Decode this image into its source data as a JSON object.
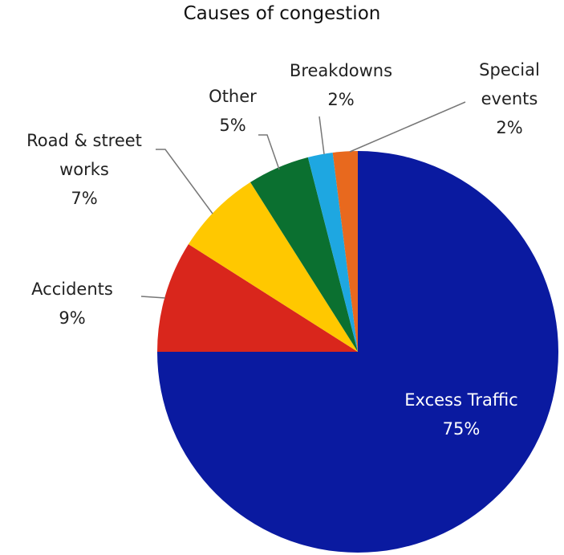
{
  "chart_data": {
    "type": "pie",
    "title": "Causes of congestion",
    "categories": [
      "Excess Traffic",
      "Accidents",
      "Road & street works",
      "Other",
      "Breakdowns",
      "Special events"
    ],
    "values": [
      75,
      9,
      7,
      5,
      2,
      2
    ],
    "value_labels": [
      "75%",
      "9%",
      "7%",
      "5%",
      "2%",
      "2%"
    ],
    "colors": [
      "#0a1aa0",
      "#d9261c",
      "#ffc800",
      "#0b7030",
      "#1ea7e1",
      "#e8691e"
    ]
  }
}
